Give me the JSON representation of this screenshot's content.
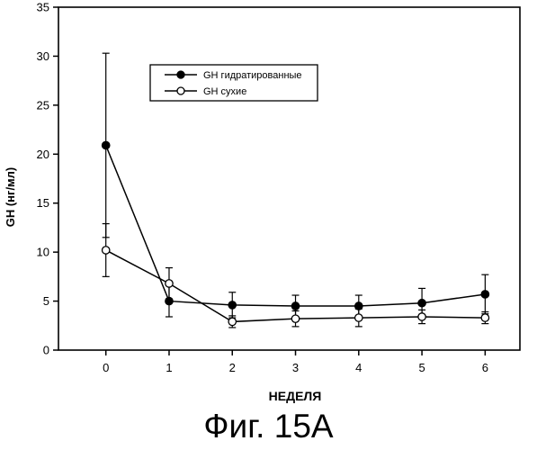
{
  "figure_caption": "Фиг. 15А",
  "chart_data": {
    "type": "line",
    "xlabel": "НЕДЕЛЯ",
    "ylabel": "GH (нг/мл)",
    "x": [
      0,
      1,
      2,
      3,
      4,
      5,
      6
    ],
    "x_ticks": [
      "0",
      "1",
      "2",
      "3",
      "4",
      "5",
      "6"
    ],
    "y_ticks": [
      "0",
      "5",
      "10",
      "15",
      "20",
      "25",
      "30",
      "35"
    ],
    "xlim": [
      -0.75,
      6.55
    ],
    "ylim": [
      0,
      35
    ],
    "grid": false,
    "legend_position": "top-left",
    "series": [
      {
        "name": "GH гидратированные",
        "marker": "filled-circle",
        "color": "#000000",
        "values": [
          20.9,
          5.0,
          4.6,
          4.5,
          4.5,
          4.8,
          5.7
        ],
        "error": [
          9.4,
          1.6,
          1.3,
          1.1,
          1.1,
          1.5,
          2.0
        ]
      },
      {
        "name": "GH сухие",
        "marker": "open-circle",
        "color": "#000000",
        "values": [
          10.2,
          6.8,
          2.9,
          3.2,
          3.3,
          3.4,
          3.3
        ],
        "error": [
          2.7,
          1.6,
          0.6,
          0.8,
          0.9,
          0.7,
          0.6
        ]
      }
    ]
  }
}
